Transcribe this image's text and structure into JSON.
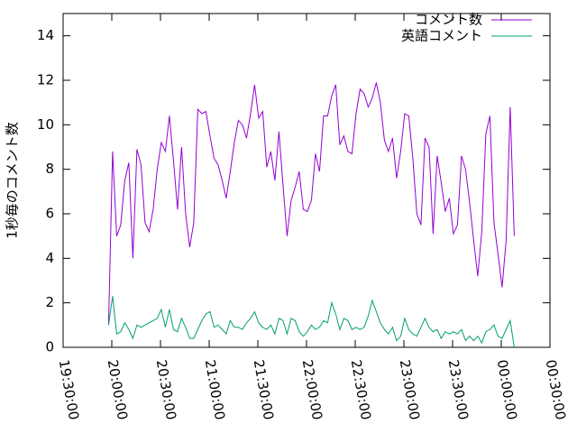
{
  "chart_data": {
    "type": "line",
    "y_label": "1秒毎のコメント数",
    "x": [
      28,
      30.5,
      33,
      35.5,
      38,
      40.5,
      43,
      45.5,
      48,
      50.5,
      53,
      55.5,
      58,
      60.5,
      63,
      65.5,
      68,
      70.5,
      73,
      75.5,
      78,
      80.5,
      83,
      85.5,
      88,
      90.5,
      93,
      95.5,
      98,
      100.5,
      103,
      105.5,
      108,
      110.5,
      113,
      115.5,
      118,
      120.5,
      123,
      125.5,
      128,
      130.5,
      133,
      135.5,
      138,
      140.5,
      143,
      145.5,
      148,
      150.5,
      153,
      155.5,
      158,
      160.5,
      163,
      165.5,
      168,
      170.5,
      173,
      175.5,
      178,
      180.5,
      183,
      185.5,
      188,
      190.5,
      193,
      195.5,
      198,
      200.5,
      203,
      205.5,
      208,
      210.5,
      213,
      215.5,
      218,
      220.5,
      223,
      225.5,
      228,
      230.5,
      233,
      235.5,
      238,
      240.5,
      243,
      245.5,
      248,
      250.5,
      253,
      255.5,
      258,
      260.5,
      263,
      265.5,
      268,
      270.5,
      273,
      275.5,
      278
    ],
    "series": [
      {
        "name": "コメント数",
        "color": "#9400d3",
        "values": [
          1,
          8.8,
          5.0,
          5.5,
          7.5,
          8.3,
          4.0,
          8.9,
          8.2,
          5.6,
          5.2,
          6.2,
          8.0,
          9.2,
          8.8,
          10.4,
          8.4,
          6.2,
          9.0,
          6.0,
          4.5,
          5.6,
          10.7,
          10.5,
          10.6,
          9.5,
          8.5,
          8.2,
          7.5,
          6.7,
          7.9,
          9.2,
          10.2,
          10.0,
          9.4,
          10.5,
          11.8,
          10.3,
          10.6,
          8.1,
          8.8,
          7.5,
          9.7,
          7.3,
          5.0,
          6.6,
          7.2,
          7.9,
          6.2,
          6.1,
          6.6,
          8.7,
          7.9,
          10.4,
          10.4,
          11.3,
          11.8,
          9.1,
          9.5,
          8.8,
          8.7,
          10.5,
          11.6,
          11.4,
          10.8,
          11.2,
          11.9,
          11.0,
          9.3,
          8.8,
          9.4,
          7.6,
          8.8,
          10.5,
          10.4,
          8.5,
          6.0,
          5.5,
          9.4,
          9.0,
          5.1,
          8.6,
          7.4,
          6.1,
          6.7,
          5.1,
          5.5,
          8.6,
          8.0,
          6.5,
          4.8,
          3.2,
          5.2,
          9.6,
          10.4,
          5.6,
          4.2,
          2.7,
          4.8,
          10.8,
          5.0
        ]
      },
      {
        "name": "英語コメント",
        "color": "#009e73",
        "values": [
          1.0,
          2.3,
          0.6,
          0.7,
          1.1,
          0.8,
          0.4,
          1.0,
          0.9,
          1.0,
          1.1,
          1.2,
          1.3,
          1.7,
          0.9,
          1.7,
          0.8,
          0.7,
          1.3,
          0.9,
          0.4,
          0.4,
          0.8,
          1.2,
          1.5,
          1.6,
          0.9,
          1.0,
          0.8,
          0.6,
          1.2,
          0.9,
          0.9,
          0.8,
          1.1,
          1.3,
          1.6,
          1.1,
          0.9,
          0.8,
          1.0,
          0.6,
          1.3,
          1.2,
          0.6,
          1.3,
          1.2,
          0.7,
          0.5,
          0.7,
          1.0,
          0.8,
          0.9,
          1.2,
          1.1,
          2.0,
          1.5,
          0.8,
          1.3,
          1.2,
          0.8,
          0.9,
          0.8,
          0.9,
          1.4,
          2.1,
          1.6,
          1.1,
          0.8,
          0.6,
          0.9,
          0.3,
          0.5,
          1.3,
          0.8,
          0.6,
          0.5,
          0.9,
          1.3,
          0.9,
          0.7,
          0.8,
          0.4,
          0.7,
          0.6,
          0.7,
          0.6,
          0.8,
          0.3,
          0.5,
          0.3,
          0.5,
          0.2,
          0.7,
          0.8,
          1.0,
          0.5,
          0.4,
          0.8,
          1.2,
          0.0
        ]
      }
    ],
    "xlim": [
      0,
      300
    ],
    "xticks": [
      {
        "value": 0,
        "label": "19:30:00"
      },
      {
        "value": 30,
        "label": "20:00:00"
      },
      {
        "value": 60,
        "label": "20:30:00"
      },
      {
        "value": 90,
        "label": "21:00:00"
      },
      {
        "value": 120,
        "label": "21:30:00"
      },
      {
        "value": 150,
        "label": "22:00:00"
      },
      {
        "value": 180,
        "label": "22:30:00"
      },
      {
        "value": 210,
        "label": "23:00:00"
      },
      {
        "value": 240,
        "label": "23:30:00"
      },
      {
        "value": 270,
        "label": "00:00:00"
      },
      {
        "value": 300,
        "label": "00:30:00"
      }
    ],
    "ylim": [
      0,
      15
    ],
    "yticks": [
      0,
      2,
      4,
      6,
      8,
      10,
      12,
      14
    ],
    "legend": "top-right"
  }
}
